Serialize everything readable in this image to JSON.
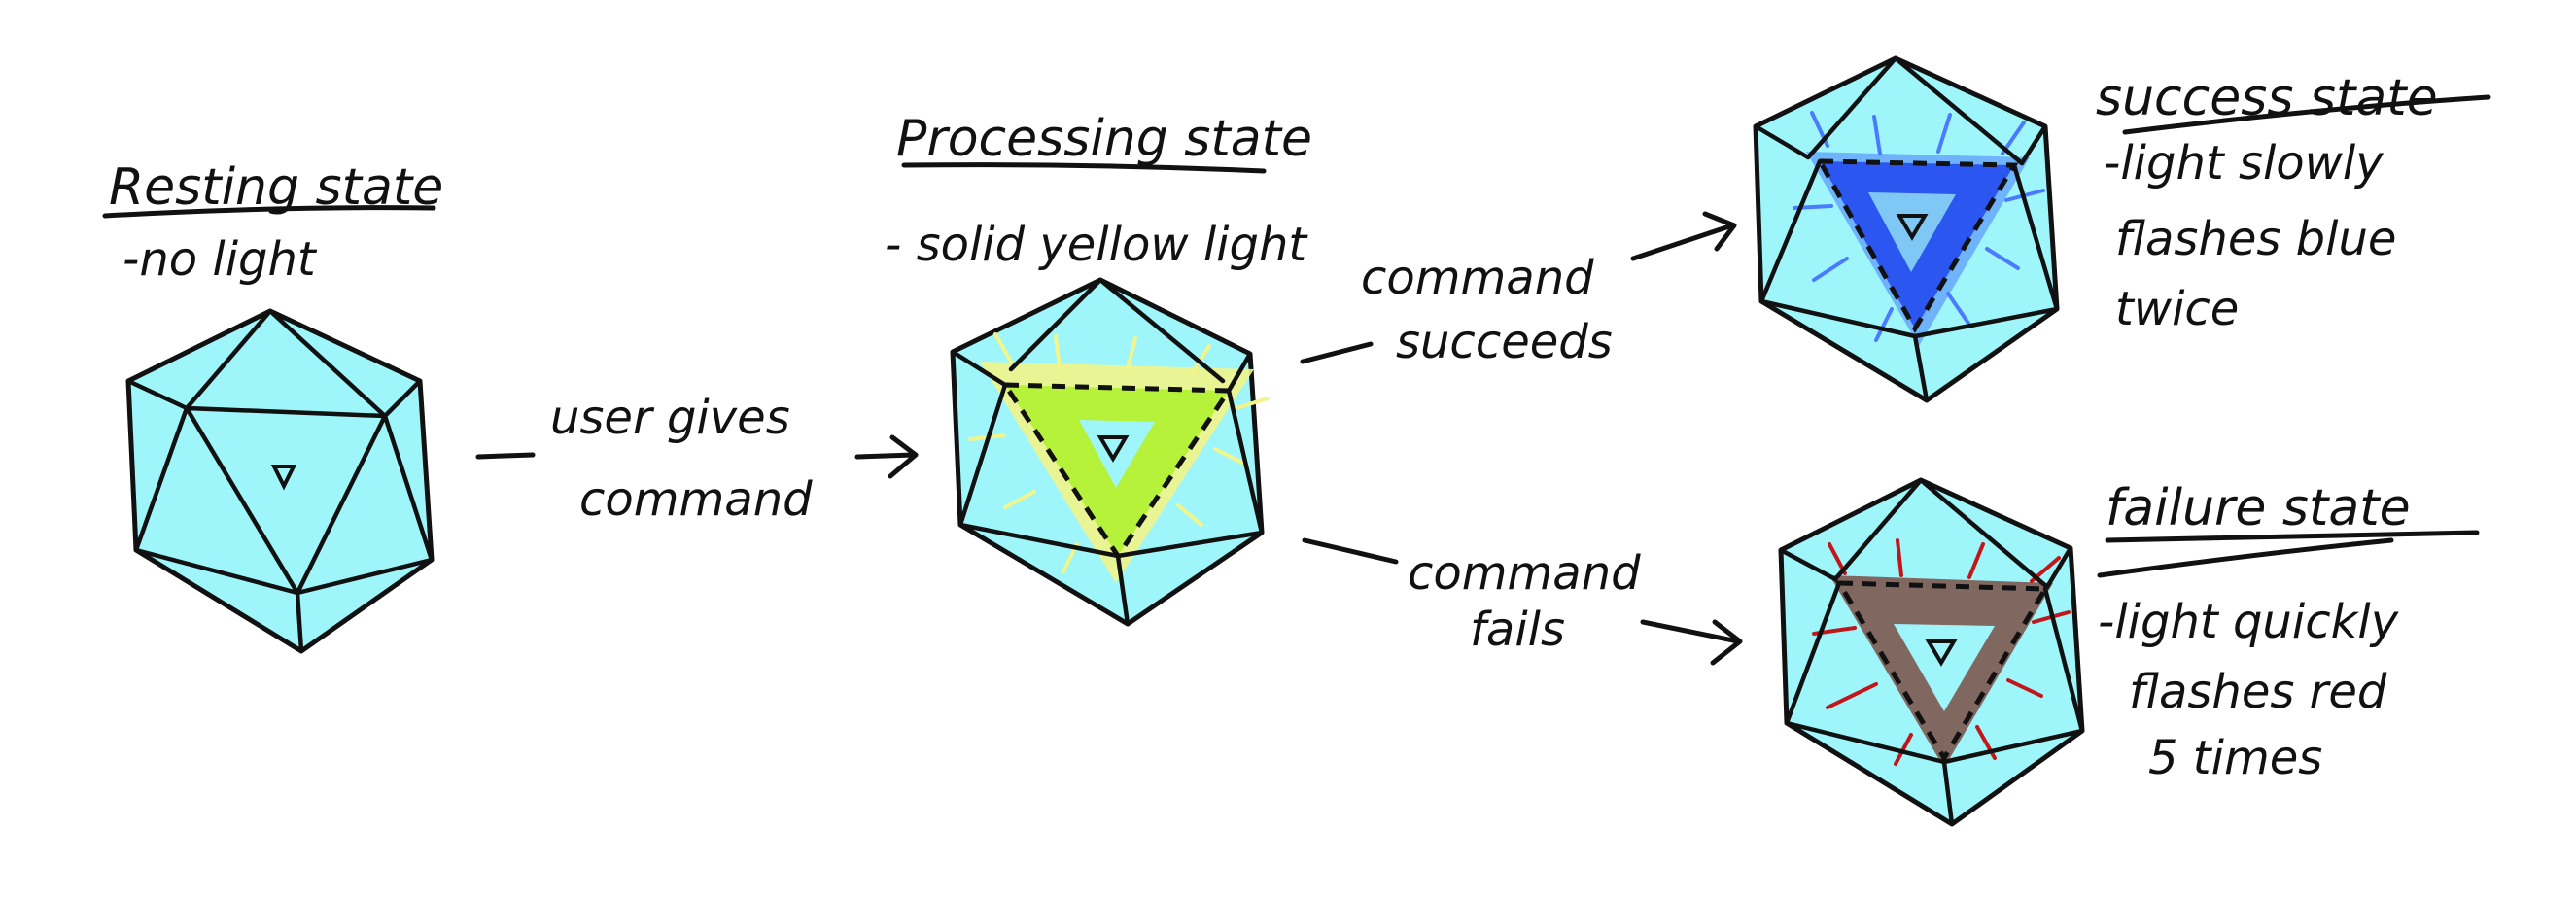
{
  "colors": {
    "die_face": "#9ef6fb",
    "ink": "#111111",
    "processing_light": "#b6f23a",
    "processing_glow": "#f1f58a",
    "success_light": "#2b56f0",
    "success_glow": "#4a7bff",
    "failure_light": "#7a4d44",
    "failure_rays": "#c2161b"
  },
  "states": {
    "resting": {
      "title": "Resting state",
      "desc": [
        "-no light"
      ]
    },
    "processing": {
      "title": "Processing state",
      "desc": [
        "- solid yellow light"
      ]
    },
    "success": {
      "title": "success state",
      "desc": [
        "-light slowly",
        "flashes blue",
        "twice"
      ]
    },
    "failure": {
      "title": "failure state",
      "desc": [
        "-light quickly",
        "flashes red",
        "5 times"
      ]
    }
  },
  "transitions": {
    "give_command": [
      "user gives",
      "command"
    ],
    "succeeds": [
      "command",
      "succeeds"
    ],
    "fails": [
      "command",
      "fails"
    ]
  }
}
